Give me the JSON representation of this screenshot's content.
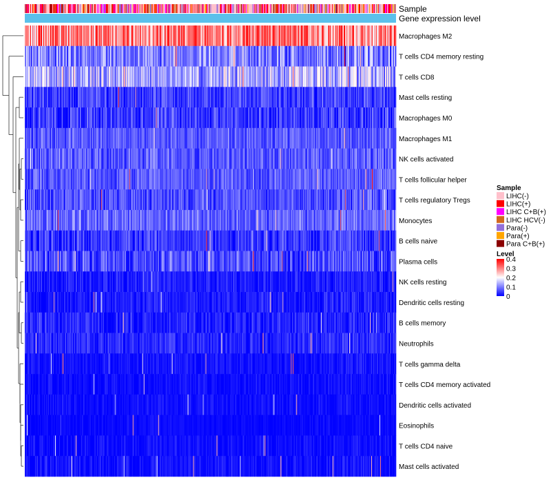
{
  "chart_data": {
    "type": "heatmap",
    "annotations": [
      "Sample",
      "Gene expression level"
    ],
    "rows": [
      {
        "label": "Macrophages M2",
        "mean": 0.3,
        "spread": 0.12
      },
      {
        "label": "T cells CD4 memory resting",
        "mean": 0.1,
        "spread": 0.09
      },
      {
        "label": "T cells CD8",
        "mean": 0.14,
        "spread": 0.1
      },
      {
        "label": "Mast cells resting",
        "mean": 0.05,
        "spread": 0.06
      },
      {
        "label": "Macrophages M0",
        "mean": 0.04,
        "spread": 0.07
      },
      {
        "label": "Macrophages M1",
        "mean": 0.07,
        "spread": 0.05
      },
      {
        "label": "NK cells activated",
        "mean": 0.07,
        "spread": 0.06
      },
      {
        "label": "T cells follicular helper",
        "mean": 0.07,
        "spread": 0.05
      },
      {
        "label": "T cells regulatory  Tregs",
        "mean": 0.06,
        "spread": 0.06
      },
      {
        "label": "Monocytes",
        "mean": 0.08,
        "spread": 0.06
      },
      {
        "label": "B cells naive",
        "mean": 0.04,
        "spread": 0.06
      },
      {
        "label": "Plasma cells",
        "mean": 0.06,
        "spread": 0.07
      },
      {
        "label": "NK cells resting",
        "mean": 0.02,
        "spread": 0.04
      },
      {
        "label": "Dendritic cells resting",
        "mean": 0.02,
        "spread": 0.04
      },
      {
        "label": "B cells memory",
        "mean": 0.02,
        "spread": 0.05
      },
      {
        "label": "Neutrophils",
        "mean": 0.03,
        "spread": 0.04
      },
      {
        "label": "T cells gamma delta",
        "mean": 0.01,
        "spread": 0.03
      },
      {
        "label": "T cells CD4 memory activated",
        "mean": 0.005,
        "spread": 0.03
      },
      {
        "label": "Dendritic cells activated",
        "mean": 0.005,
        "spread": 0.03
      },
      {
        "label": "Eosinophils",
        "mean": 0.002,
        "spread": 0.02
      },
      {
        "label": "T cells CD4 naive",
        "mean": 0.005,
        "spread": 0.03
      },
      {
        "label": "Mast cells activated",
        "mean": 0.005,
        "spread": 0.04
      }
    ],
    "sample_legend": {
      "title": "Sample",
      "items": [
        {
          "label": "LIHC(-)",
          "color": "#ffc0cb"
        },
        {
          "label": "LIHC(+)",
          "color": "#ff0000"
        },
        {
          "label": "LIHC C+B(+)",
          "color": "#ff00ff"
        },
        {
          "label": "LIHC HCV(-)",
          "color": "#d2691e"
        },
        {
          "label": "Para(-)",
          "color": "#9370db"
        },
        {
          "label": "Para(+)",
          "color": "#ffa500"
        },
        {
          "label": "Para C+B(+)",
          "color": "#8b0000"
        }
      ]
    },
    "level_legend": {
      "title": "Level",
      "range": [
        0,
        0.4
      ],
      "ticks": [
        "0.4",
        "0.3",
        "0.2",
        "0.1",
        "0"
      ],
      "colors": [
        "#0000ff",
        "#ffffff",
        "#ff0000"
      ]
    },
    "expression_bar_color": "#5bc0eb",
    "n_samples": 540
  }
}
